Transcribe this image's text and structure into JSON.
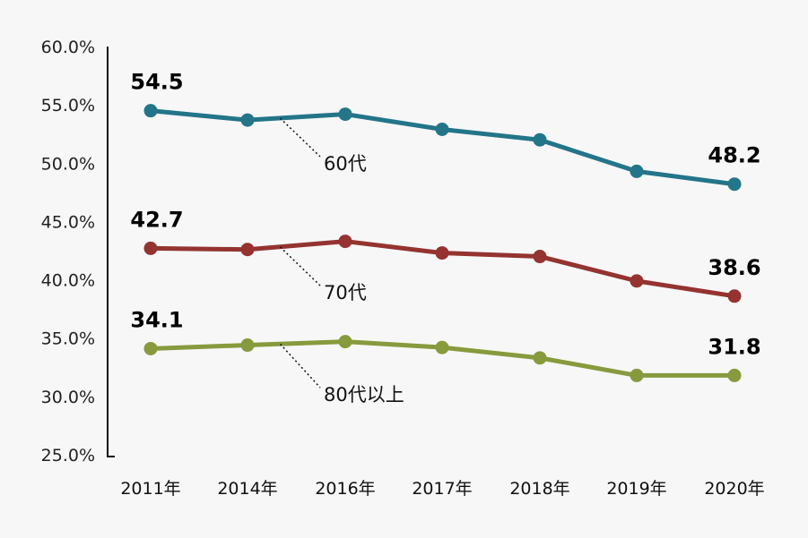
{
  "chart_data": {
    "type": "line",
    "categories": [
      "2011年",
      "2014年",
      "2016年",
      "2017年",
      "2018年",
      "2019年",
      "2020年"
    ],
    "ylim": [
      25,
      60
    ],
    "yticks": [
      "25.0%",
      "30.0%",
      "35.0%",
      "40.0%",
      "45.0%",
      "50.0%",
      "55.0%",
      "60.0%"
    ],
    "grid": false,
    "series": [
      {
        "name": "60代",
        "color": "#237589",
        "values": [
          54.5,
          53.7,
          54.2,
          52.9,
          52.0,
          49.3,
          48.2
        ],
        "labels": [
          "54.5",
          "48.2"
        ]
      },
      {
        "name": "70代",
        "color": "#943330",
        "values": [
          42.7,
          42.6,
          43.3,
          42.3,
          42.0,
          39.9,
          38.6
        ],
        "labels": [
          "42.7",
          "38.6"
        ]
      },
      {
        "name": "80代以上",
        "color": "#879a3d",
        "values": [
          34.1,
          34.4,
          34.7,
          34.2,
          33.3,
          31.8,
          31.8
        ],
        "labels": [
          "34.1",
          "31.8"
        ]
      }
    ]
  }
}
